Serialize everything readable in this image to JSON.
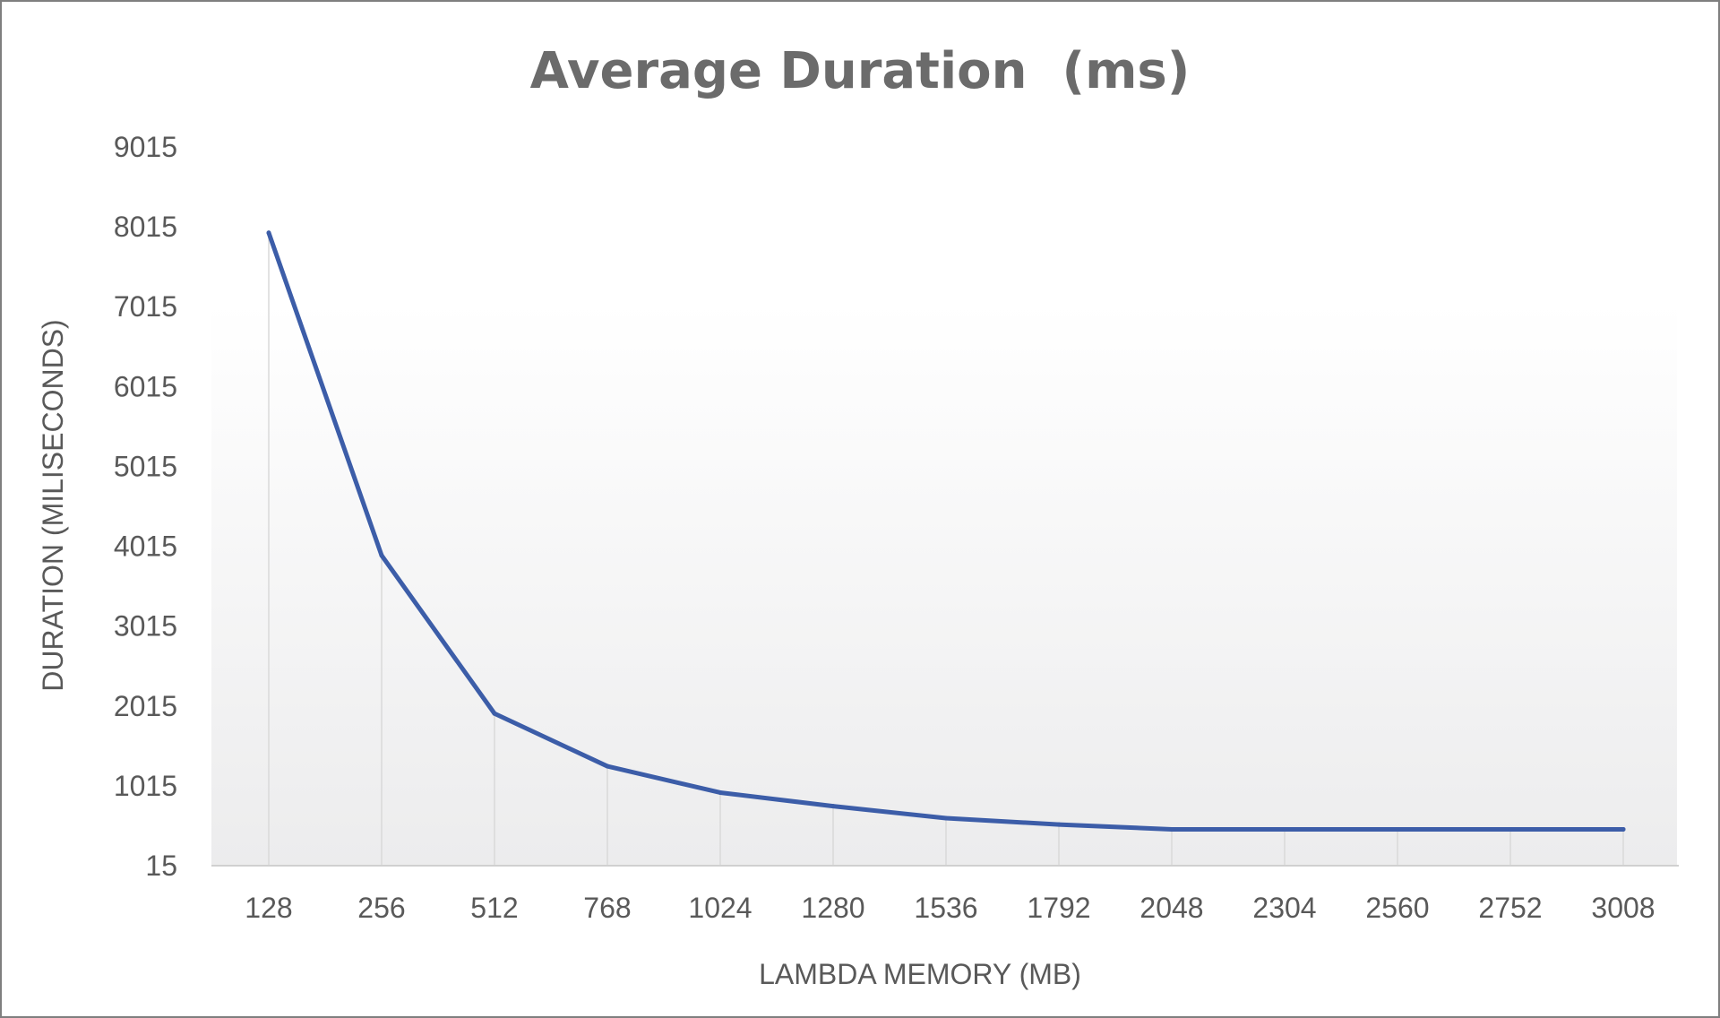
{
  "chart_data": {
    "type": "line",
    "title": "Average Duration  (ms)",
    "xlabel": "LAMBDA MEMORY (MB)",
    "ylabel": "DURATION (MILISECONDS)",
    "categories": [
      "128",
      "256",
      "512",
      "768",
      "1024",
      "1280",
      "1536",
      "1792",
      "2048",
      "2304",
      "2560",
      "2752",
      "3008"
    ],
    "y_ticks": [
      "15",
      "1015",
      "2015",
      "3015",
      "4015",
      "5015",
      "6015",
      "7015",
      "8015",
      "9015"
    ],
    "ylim": [
      15,
      9015
    ],
    "grid": "vertical drop lines at each category",
    "legend": "none",
    "series": [
      {
        "values": [
          7940,
          3900,
          1920,
          1260,
          930,
          760,
          610,
          530,
          470,
          470,
          470,
          470,
          470
        ]
      }
    ],
    "colors": {
      "line": "#3c5da8",
      "drop_line": "#d9d9d9",
      "axis": "#d0d0d0",
      "plot_gradient_top": "#ffffff",
      "plot_gradient_bottom": "#ececed"
    }
  }
}
